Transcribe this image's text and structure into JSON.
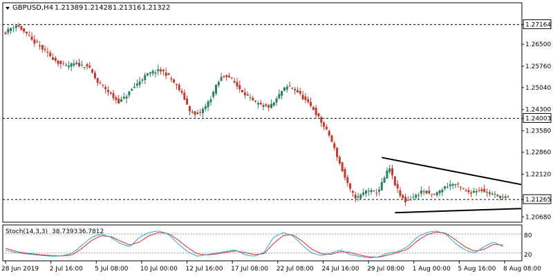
{
  "window": {
    "symbol_label": "GBPUSD,H4",
    "ohlc": [
      "1.21389",
      "1.21428",
      "1.21316",
      "1.21322"
    ]
  },
  "indicator": {
    "label": "Stoch(14,3,3)",
    "values": [
      "38.7393",
      "36.7812"
    ],
    "levels": [
      80,
      20
    ],
    "level_labels": [
      "80",
      "20"
    ]
  },
  "colors": {
    "background": "#ffffff",
    "bull_candle": "#2a7f5f",
    "bear_candle": "#c0392b",
    "stoch_main": "#2aa7c9",
    "stoch_signal": "#e0242b",
    "level_line": "#000000",
    "trendline": "#000000"
  },
  "chart_data": {
    "type": "candlestick",
    "symbol": "GBPUSD",
    "timeframe": "H4",
    "ylim": [
      1.205,
      1.279
    ],
    "y_ticks": [
      "1.27164",
      "1.26500",
      "1.25760",
      "1.25040",
      "1.24300",
      "1.24003",
      "1.23580",
      "1.22860",
      "1.22120",
      "1.21265",
      "1.20680"
    ],
    "x_ticks": [
      "28 Jun 2019",
      "2 Jul 16:00",
      "5 Jul 08:00",
      "10 Jul 00:00",
      "12 Jul 16:00",
      "17 Jul 08:00",
      "22 Jul 08:00",
      "24 Jul 16:00",
      "29 Jul 08:00",
      "1 Aug 00:00",
      "5 Aug 16:00",
      "8 Aug 08:00"
    ],
    "horizontal_levels": [
      1.27164,
      1.24003,
      1.21265
    ],
    "highlighted_labels": [
      "1.27164",
      "1.24003",
      "1.21265"
    ],
    "close_path": [
      [
        1.269,
        1.2705,
        1.2715,
        1.27,
        1.268,
        1.266,
        1.265,
        1.263,
        1.2615,
        1.26,
        1.2585,
        1.2575,
        1.258,
        1.2585,
        1.2578,
        1.258,
        1.2555,
        1.252
      ],
      [
        1.252,
        1.251,
        1.249,
        1.247,
        1.2455,
        1.247,
        1.249,
        1.251,
        1.253,
        1.2545,
        1.2555,
        1.256,
        1.256,
        1.2545,
        1.2525,
        1.25,
        1.247,
        1.243,
        1.241,
        1.242,
        1.244,
        1.247,
        1.251,
        1.254,
        1.2545
      ],
      [
        1.2545,
        1.253,
        1.2505,
        1.249,
        1.247,
        1.2455,
        1.2445,
        1.244,
        1.244,
        1.246,
        1.249,
        1.2505,
        1.2505,
        1.249,
        1.247,
        1.245
      ],
      [
        1.245,
        1.243,
        1.24,
        1.237,
        1.234,
        1.229,
        1.224,
        1.219,
        1.215,
        1.213,
        1.2145,
        1.216,
        1.215,
        1.2155,
        1.2195,
        1.2235,
        1.218,
        1.214,
        1.212
      ],
      [
        1.212,
        1.213,
        1.214,
        1.2155,
        1.215,
        1.214,
        1.215,
        1.2165,
        1.2175,
        1.218,
        1.217,
        1.2155,
        1.215,
        1.2158,
        1.216,
        1.215,
        1.2145,
        1.214,
        1.2135,
        1.2132
      ]
    ],
    "stochastic": {
      "main_path": [
        30,
        22,
        18,
        15,
        12,
        10,
        12,
        20,
        45,
        70,
        80,
        70,
        50,
        40,
        70,
        85,
        90,
        80,
        50,
        25,
        10,
        15,
        20,
        25,
        30,
        15,
        10,
        22,
        70,
        85,
        75,
        45,
        20,
        12,
        20,
        30,
        15,
        10,
        5,
        8,
        20,
        25,
        40,
        70,
        85,
        90,
        80,
        50,
        30,
        20,
        40,
        55,
        40
      ],
      "signal_path": [
        35,
        26,
        20,
        17,
        14,
        12,
        11,
        15,
        35,
        60,
        75,
        72,
        58,
        45,
        55,
        75,
        85,
        82,
        62,
        38,
        18,
        14,
        17,
        22,
        27,
        22,
        15,
        18,
        50,
        75,
        78,
        58,
        32,
        18,
        16,
        25,
        22,
        14,
        8,
        7,
        14,
        22,
        32,
        58,
        78,
        86,
        83,
        62,
        40,
        26,
        32,
        48,
        45
      ]
    },
    "patterns": [
      {
        "type": "descending-trendline",
        "from": {
          "x": "29 Jul 00:00",
          "y": 1.2268
        },
        "to": {
          "x": "8 Aug 20:00",
          "y": 1.2177
        }
      },
      {
        "type": "ascending-trendline",
        "from": {
          "x": "30 Jul 00:00",
          "y": 1.2082
        },
        "to": {
          "x": "8 Aug 20:00",
          "y": 1.2096
        }
      }
    ]
  }
}
